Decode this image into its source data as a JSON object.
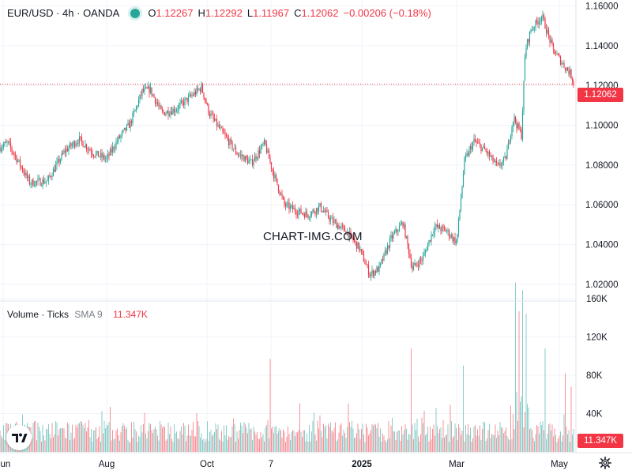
{
  "header": {
    "symbol": "EUR/USD · 4h · OANDA",
    "open_label": "O",
    "open": "1.12267",
    "high_label": "H",
    "high": "1.12292",
    "low_label": "L",
    "low": "1.11967",
    "close_label": "C",
    "close": "1.12062",
    "change": "−0.00206 (−0.18%)"
  },
  "volume_header": {
    "title": "Volume · Ticks",
    "sma_label": "SMA 9",
    "sma_value": "11.347K"
  },
  "last_price_label": "1.12062",
  "last_volume_label": "11.347K",
  "watermark": "CHART-IMG.COM",
  "colors": {
    "up": "#26a69a",
    "down": "#f23645",
    "grid": "#f0f3fa",
    "text": "#131722"
  },
  "icons": {
    "logo": "tradingview-logo-icon",
    "settings": "gear-icon"
  },
  "chart_data": [
    {
      "type": "candlestick",
      "title": "EUR/USD · 4h · OANDA",
      "y_ticks": [
        "1.16000",
        "1.14000",
        "1.12000",
        "1.10000",
        "1.08000",
        "1.06000",
        "1.04000",
        "1.02000"
      ],
      "x_ticks": [
        "Jun",
        "Aug",
        "Oct",
        "7",
        "2025",
        "Mar",
        "May"
      ],
      "ylim": [
        1.012,
        1.163
      ],
      "last_price": 1.12062,
      "series": [
        {
          "name": "EUR/USD",
          "anchors": [
            [
              0,
              1.089
            ],
            [
              10,
              1.091
            ],
            [
              20,
              1.084
            ],
            [
              38,
              1.071
            ],
            [
              60,
              1.072
            ],
            [
              82,
              1.087
            ],
            [
              100,
              1.093
            ],
            [
              118,
              1.086
            ],
            [
              135,
              1.083
            ],
            [
              148,
              1.092
            ],
            [
              165,
              1.101
            ],
            [
              180,
              1.117
            ],
            [
              190,
              1.118
            ],
            [
              205,
              1.106
            ],
            [
              222,
              1.108
            ],
            [
              240,
              1.114
            ],
            [
              255,
              1.119
            ],
            [
              265,
              1.106
            ],
            [
              280,
              1.097
            ],
            [
              300,
              1.086
            ],
            [
              318,
              1.081
            ],
            [
              335,
              1.091
            ],
            [
              345,
              1.077
            ],
            [
              360,
              1.06
            ],
            [
              375,
              1.057
            ],
            [
              390,
              1.055
            ],
            [
              405,
              1.059
            ],
            [
              420,
              1.052
            ],
            [
              440,
              1.046
            ],
            [
              455,
              1.038
            ],
            [
              468,
              1.025
            ],
            [
              480,
              1.028
            ],
            [
              495,
              1.043
            ],
            [
              510,
              1.051
            ],
            [
              522,
              1.028
            ],
            [
              535,
              1.033
            ],
            [
              550,
              1.049
            ],
            [
              565,
              1.047
            ],
            [
              578,
              1.041
            ],
            [
              588,
              1.082
            ],
            [
              600,
              1.092
            ],
            [
              615,
              1.087
            ],
            [
              630,
              1.079
            ],
            [
              640,
              1.083
            ],
            [
              650,
              1.104
            ],
            [
              660,
              1.095
            ],
            [
              665,
              1.138
            ],
            [
              672,
              1.148
            ],
            [
              686,
              1.155
            ],
            [
              700,
              1.138
            ],
            [
              712,
              1.131
            ],
            [
              722,
              1.126
            ],
            [
              727,
              1.1206
            ]
          ]
        }
      ]
    },
    {
      "type": "bar",
      "title": "Volume · Ticks",
      "y_ticks": [
        "160K",
        "120K",
        "80K",
        "40K"
      ],
      "ylim": [
        0,
        160000
      ],
      "base_level_k": 25,
      "spikes_k": [
        [
          140,
          47
        ],
        [
          342,
          97
        ],
        [
          405,
          38
        ],
        [
          520,
          108
        ],
        [
          586,
          90
        ],
        [
          652,
          152
        ],
        [
          657,
          140
        ],
        [
          662,
          133
        ],
        [
          666,
          125
        ],
        [
          690,
          108
        ],
        [
          715,
          82
        ],
        [
          723,
          68
        ]
      ]
    }
  ]
}
